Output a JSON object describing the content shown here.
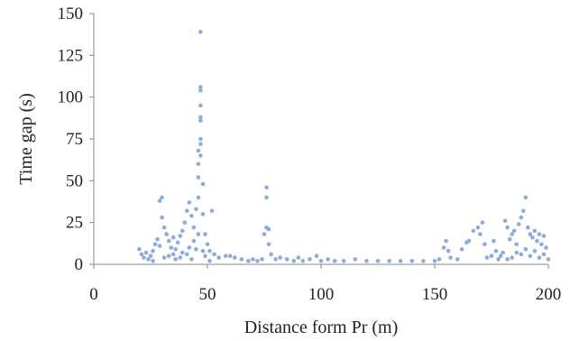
{
  "chart_data": {
    "type": "scatter",
    "title": "",
    "xlabel": "Distance form Pr (m)",
    "ylabel": "Time gap (s)",
    "xlim": [
      0,
      200
    ],
    "ylim": [
      0,
      150
    ],
    "xticks": [
      0,
      50,
      100,
      150,
      200
    ],
    "yticks": [
      0,
      25,
      50,
      75,
      100,
      125,
      150
    ],
    "grid": false,
    "legend": "none",
    "marker_color": "#8FAADC",
    "series": [
      {
        "points": [
          [
            20,
            9
          ],
          [
            21,
            6
          ],
          [
            22,
            4
          ],
          [
            23,
            7
          ],
          [
            24,
            3
          ],
          [
            25,
            5
          ],
          [
            26,
            8
          ],
          [
            27,
            12
          ],
          [
            28,
            15
          ],
          [
            29,
            38
          ],
          [
            30,
            40
          ],
          [
            30,
            28
          ],
          [
            31,
            22
          ],
          [
            32,
            18
          ],
          [
            33,
            14
          ],
          [
            34,
            10
          ],
          [
            35,
            6
          ],
          [
            36,
            9
          ],
          [
            37,
            13
          ],
          [
            38,
            17
          ],
          [
            39,
            20
          ],
          [
            40,
            25
          ],
          [
            41,
            32
          ],
          [
            42,
            37
          ],
          [
            43,
            29
          ],
          [
            44,
            22
          ],
          [
            45,
            33
          ],
          [
            46,
            40
          ],
          [
            46,
            52
          ],
          [
            46,
            60
          ],
          [
            46,
            68
          ],
          [
            47,
            72
          ],
          [
            47,
            75
          ],
          [
            47,
            86
          ],
          [
            47,
            88
          ],
          [
            47,
            95
          ],
          [
            47,
            104
          ],
          [
            47,
            106
          ],
          [
            47,
            139
          ],
          [
            47,
            65
          ],
          [
            48,
            48
          ],
          [
            48,
            30
          ],
          [
            49,
            18
          ],
          [
            50,
            12
          ],
          [
            51,
            8
          ],
          [
            52,
            32
          ],
          [
            53,
            6
          ],
          [
            55,
            4
          ],
          [
            58,
            5
          ],
          [
            60,
            5
          ],
          [
            62,
            4
          ],
          [
            65,
            3
          ],
          [
            68,
            2
          ],
          [
            70,
            3
          ],
          [
            72,
            2
          ],
          [
            74,
            3
          ],
          [
            75,
            18
          ],
          [
            76,
            22
          ],
          [
            76,
            40
          ],
          [
            76,
            46
          ],
          [
            77,
            21
          ],
          [
            77,
            12
          ],
          [
            78,
            6
          ],
          [
            80,
            3
          ],
          [
            82,
            4
          ],
          [
            85,
            3
          ],
          [
            88,
            2
          ],
          [
            90,
            4
          ],
          [
            92,
            2
          ],
          [
            95,
            3
          ],
          [
            98,
            5
          ],
          [
            100,
            2
          ],
          [
            103,
            3
          ],
          [
            106,
            2
          ],
          [
            110,
            2
          ],
          [
            115,
            3
          ],
          [
            120,
            2
          ],
          [
            125,
            2
          ],
          [
            130,
            2
          ],
          [
            135,
            2
          ],
          [
            140,
            2
          ],
          [
            145,
            2
          ],
          [
            150,
            2
          ],
          [
            152,
            3
          ],
          [
            154,
            10
          ],
          [
            155,
            14
          ],
          [
            156,
            8
          ],
          [
            157,
            4
          ],
          [
            160,
            3
          ],
          [
            162,
            9
          ],
          [
            164,
            13
          ],
          [
            165,
            14
          ],
          [
            167,
            20
          ],
          [
            169,
            22
          ],
          [
            170,
            18
          ],
          [
            171,
            25
          ],
          [
            172,
            12
          ],
          [
            173,
            4
          ],
          [
            175,
            5
          ],
          [
            176,
            14
          ],
          [
            177,
            8
          ],
          [
            178,
            3
          ],
          [
            180,
            7
          ],
          [
            181,
            26
          ],
          [
            182,
            22
          ],
          [
            183,
            15
          ],
          [
            184,
            18
          ],
          [
            185,
            20
          ],
          [
            186,
            12
          ],
          [
            187,
            24
          ],
          [
            188,
            28
          ],
          [
            189,
            32
          ],
          [
            190,
            40
          ],
          [
            191,
            22
          ],
          [
            192,
            18
          ],
          [
            193,
            16
          ],
          [
            194,
            20
          ],
          [
            195,
            14
          ],
          [
            196,
            18
          ],
          [
            197,
            12
          ],
          [
            198,
            17
          ],
          [
            199,
            10
          ],
          [
            200,
            3
          ],
          [
            33,
            5
          ],
          [
            36,
            3
          ],
          [
            39,
            7
          ],
          [
            42,
            10
          ],
          [
            44,
            14
          ],
          [
            46,
            18
          ],
          [
            48,
            8
          ],
          [
            26,
            2
          ],
          [
            29,
            11
          ],
          [
            31,
            4
          ],
          [
            35,
            16
          ],
          [
            38,
            4
          ],
          [
            41,
            6
          ],
          [
            43,
            3
          ],
          [
            45,
            9
          ],
          [
            49,
            5
          ],
          [
            51,
            2
          ],
          [
            188,
            6
          ],
          [
            190,
            9
          ],
          [
            192,
            5
          ],
          [
            194,
            8
          ],
          [
            196,
            4
          ],
          [
            198,
            6
          ],
          [
            184,
            4
          ],
          [
            186,
            7
          ],
          [
            182,
            3
          ],
          [
            179,
            5
          ]
        ]
      }
    ]
  }
}
